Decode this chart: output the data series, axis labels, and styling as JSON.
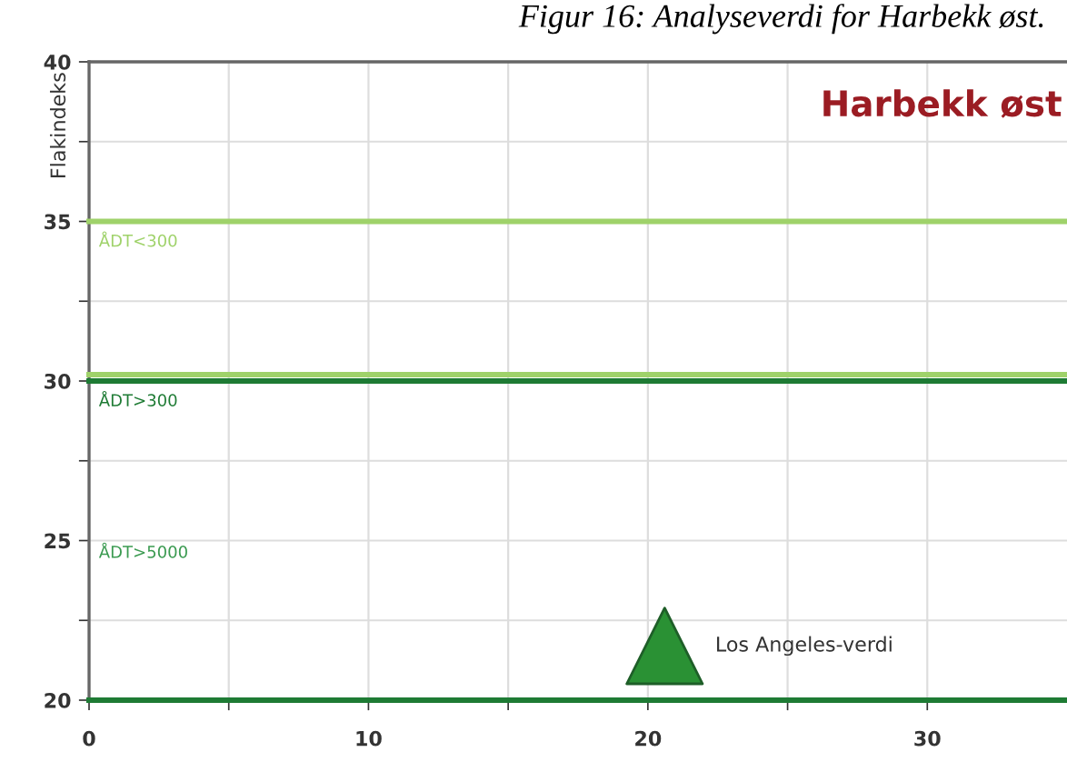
{
  "chart_data": {
    "type": "scatter",
    "title": "Figur 16: Analyseverdi for Harbekk øst.",
    "ylabel": "Flakindeks",
    "x": [
      20.6
    ],
    "series": [
      {
        "name": "Los Angeles-verdi",
        "color": "#2a9134",
        "values": [
          21.7
        ]
      }
    ],
    "marker": "triangle",
    "xlim": [
      0,
      35
    ],
    "ylim": [
      20,
      40
    ],
    "xticks": [
      0,
      {
        "value": 5,
        "label": null
      },
      10,
      {
        "value": 15,
        "label": null
      },
      20,
      {
        "value": 25,
        "label": null
      },
      30
    ],
    "yticks": [
      20,
      {
        "value": 22.5,
        "label": null
      },
      25,
      {
        "value": 27.5,
        "label": null
      },
      30,
      {
        "value": 32.5,
        "label": null
      },
      35,
      {
        "value": 37.5,
        "label": null
      },
      40
    ],
    "grid": true,
    "ref_lines": [
      {
        "axis": "y",
        "value": 35,
        "label": "ÅDT<300",
        "color": "#9fd26a"
      },
      {
        "axis": "y",
        "value": 30.2,
        "color": "#9fd26a"
      },
      {
        "axis": "y",
        "value": 30,
        "label": "ÅDT>300",
        "color": "#1e7b34"
      }
    ],
    "annotations": [
      "Harbekk øst",
      "ÅDT>5000"
    ]
  }
}
